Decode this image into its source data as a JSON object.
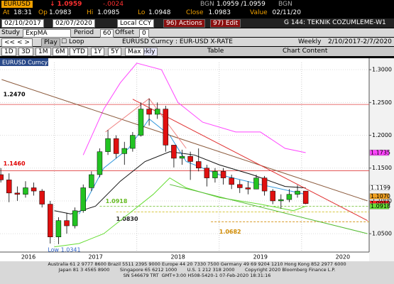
{
  "header": {
    "ticker": "EURUSD",
    "last": "↓ 1.0959",
    "change": "-.0024",
    "src1": "BGN",
    "bid_ask": "1.0959 /1.0959",
    "src2": "BGN",
    "stats": [
      {
        "label": "At",
        "value": "18:31"
      },
      {
        "label": "Op",
        "value": "1.0983"
      },
      {
        "label": "Hi",
        "value": "1.0985"
      },
      {
        "label": "Lo",
        "value": "1.0948"
      },
      {
        "label": "Close",
        "value": "1.0983"
      },
      {
        "label": "Value",
        "value": "02/11/20"
      }
    ]
  },
  "toolbar": {
    "start_date": "02/10/2017",
    "end_date": "02/07/2020",
    "currency": "Local CCY",
    "actions": "96) Actions",
    "edit": "97) Edit",
    "template": "G 144: TEKNIK COZUMLEME-W1",
    "study_label": "Study",
    "study": "ExpMA",
    "period_label": "Period",
    "period": "60",
    "offset_label": "Offset",
    "offset": "0",
    "play": "Play",
    "loop": "Loop",
    "security": "EURUSD Curncy : EUR-USD X-RATE",
    "frequency": "Weekly",
    "range": "2/10/2017-2/7/2020",
    "periods": [
      "1D",
      "3D",
      "1M",
      "6M",
      "YTD",
      "1Y",
      "5Y",
      "Max"
    ],
    "period_select": "Weekly",
    "table": "Table",
    "chart_content": "Chart Content"
  },
  "chart_data": {
    "type": "candlestick",
    "security_label": "EURUSD Curncy",
    "low_label": "Low 1.0341",
    "xlim": [
      2016.34,
      2020.82
    ],
    "xticks": [
      2016,
      2017,
      2018,
      2019,
      2020
    ],
    "ylim": [
      1.022,
      1.311
    ],
    "yticks": [
      {
        "value": 1.3,
        "label": "1.3000"
      },
      {
        "value": 1.25,
        "label": "1.2500"
      },
      {
        "value": 1.2,
        "label": "1.2000"
      },
      {
        "value": 1.15,
        "label": "1.1500"
      },
      {
        "value": 1.1,
        "label": "1.1000"
      },
      {
        "value": 1.05,
        "label": "1.0500"
      }
    ],
    "up_color": "#22c322",
    "down_color": "#e01010",
    "candles": {
      "x": [
        2016.35,
        2016.45,
        2016.55,
        2016.65,
        2016.75,
        2016.85,
        2016.95,
        2017.05,
        2017.15,
        2017.25,
        2017.35,
        2017.45,
        2017.55,
        2017.65,
        2017.75,
        2017.85,
        2017.95,
        2018.05,
        2018.15,
        2018.25,
        2018.35,
        2018.45,
        2018.55,
        2018.65,
        2018.75,
        2018.85,
        2018.95,
        2019.05,
        2019.15,
        2019.25,
        2019.35,
        2019.45,
        2019.55,
        2019.65,
        2019.75,
        2019.85,
        2019.95,
        2020.05
      ],
      "open": [
        1.14,
        1.132,
        1.112,
        1.11,
        1.12,
        1.115,
        1.095,
        1.045,
        1.07,
        1.062,
        1.085,
        1.12,
        1.14,
        1.175,
        1.195,
        1.172,
        1.18,
        1.2,
        1.24,
        1.232,
        1.24,
        1.185,
        1.165,
        1.168,
        1.16,
        1.15,
        1.135,
        1.145,
        1.135,
        1.125,
        1.12,
        1.118,
        1.135,
        1.115,
        1.1,
        1.102,
        1.11,
        1.115
      ],
      "high": [
        1.15,
        1.142,
        1.122,
        1.13,
        1.128,
        1.118,
        1.1,
        1.075,
        1.082,
        1.09,
        1.125,
        1.145,
        1.18,
        1.208,
        1.2,
        1.19,
        1.205,
        1.25,
        1.256,
        1.25,
        1.245,
        1.185,
        1.178,
        1.175,
        1.18,
        1.155,
        1.15,
        1.15,
        1.14,
        1.132,
        1.13,
        1.14,
        1.138,
        1.118,
        1.11,
        1.118,
        1.124,
        1.115
      ],
      "low": [
        1.128,
        1.098,
        1.1,
        1.105,
        1.108,
        1.09,
        1.035,
        1.0341,
        1.05,
        1.058,
        1.082,
        1.115,
        1.136,
        1.17,
        1.165,
        1.155,
        1.175,
        1.198,
        1.215,
        1.225,
        1.175,
        1.151,
        1.155,
        1.132,
        1.145,
        1.122,
        1.128,
        1.125,
        1.118,
        1.112,
        1.11,
        1.118,
        1.108,
        1.095,
        1.088,
        1.098,
        1.105,
        1.095
      ],
      "close": [
        1.132,
        1.112,
        1.11,
        1.12,
        1.115,
        1.095,
        1.045,
        1.07,
        1.062,
        1.085,
        1.12,
        1.14,
        1.175,
        1.195,
        1.172,
        1.18,
        1.2,
        1.24,
        1.232,
        1.24,
        1.185,
        1.165,
        1.168,
        1.16,
        1.15,
        1.135,
        1.145,
        1.135,
        1.125,
        1.12,
        1.118,
        1.135,
        1.115,
        1.1,
        1.102,
        1.11,
        1.115,
        1.0959
      ]
    },
    "overlays": [
      {
        "color": "#ff44ff",
        "x": [
          2017.35,
          2017.6,
          2017.8,
          2018.0,
          2018.3,
          2018.5,
          2018.8,
          2019.2,
          2019.5,
          2019.8,
          2020.05
        ],
        "values": [
          1.17,
          1.24,
          1.28,
          1.31,
          1.3,
          1.25,
          1.22,
          1.205,
          1.205,
          1.18,
          1.1735
        ]
      },
      {
        "color": "#66dd33",
        "x": [
          2017.0,
          2017.3,
          2017.6,
          2017.9,
          2018.2,
          2018.4,
          2018.6,
          2019.0,
          2019.5,
          2019.9,
          2020.05
        ],
        "values": [
          1.03,
          1.035,
          1.05,
          1.08,
          1.11,
          1.135,
          1.12,
          1.105,
          1.095,
          1.085,
          1.0918
        ]
      },
      {
        "color": "#111111",
        "x": [
          2017.0,
          2017.2,
          2017.5,
          2017.8,
          2018.1,
          2018.4,
          2018.7,
          2019.0,
          2019.4,
          2019.8,
          2020.05
        ],
        "values": [
          1.085,
          1.08,
          1.092,
          1.13,
          1.16,
          1.175,
          1.17,
          1.155,
          1.14,
          1.122,
          1.1199
        ]
      },
      {
        "color": "#3399dd",
        "x": [
          2017.3,
          2017.6,
          2017.9,
          2018.15,
          2018.4,
          2018.6,
          2019.0,
          2019.5,
          2020.05
        ],
        "values": [
          1.08,
          1.15,
          1.18,
          1.225,
          1.2,
          1.16,
          1.14,
          1.125,
          1.11
        ]
      },
      {
        "color": "#8b5a3c",
        "x": [
          2016.36,
          2020.8
        ],
        "values": [
          1.285,
          1.1
        ]
      },
      {
        "color": "#e03030",
        "x": [
          2017.95,
          2020.8
        ],
        "values": [
          1.255,
          1.07
        ]
      },
      {
        "color": "#f08080",
        "x": [
          2017.62,
          2018.15,
          2018.6
        ],
        "values": [
          1.205,
          1.256,
          1.18
        ]
      },
      {
        "color": "#55bb33",
        "x": [
          2018.4,
          2020.8
        ],
        "values": [
          1.125,
          1.05
        ]
      }
    ],
    "levels": [
      {
        "value": 1.247,
        "label": "1.2470",
        "color": "#000000",
        "line_color": "#e04040"
      },
      {
        "value": 1.146,
        "label": "1.1460",
        "color": "#e00000",
        "line_color": "#e04040"
      },
      {
        "value": 1.0918,
        "label": "1.0918",
        "color": "#66bb22",
        "line_color": "#66bb22"
      },
      {
        "value": 1.083,
        "label": "1.0830",
        "color": "#222222",
        "line_color": "#c8b400"
      },
      {
        "value": 1.0682,
        "label": "1.0682",
        "color": "#d08a00",
        "line_color": "#d08a00"
      }
    ],
    "markers": [
      {
        "value": 1.1735,
        "label": "1.1735",
        "color": "#ff44ff"
      },
      {
        "value": 1.1199,
        "label": "1.1199",
        "color": "#ffffff"
      },
      {
        "value": 1.107,
        "label": "1.1070",
        "color": "#f0a020"
      },
      {
        "value": 1.0959,
        "label": "1.0959",
        "color": "#ff2020"
      },
      {
        "value": 1.0918,
        "label": "1.0918",
        "color": "#66dd33"
      }
    ]
  },
  "footer": {
    "lines": [
      "Australia 61 2 9777 8600 Brazil 5511 2395 9000 Europe 44 20 7330 7500 Germany 49 69 9204 1210 Hong Kong 852 2977 6000",
      "Japan 81 3 4565 8900       Singapore 65 6212 1000       U.S. 1 212 318 2000       Copyright 2020 Bloomberg Finance L.P.",
      "SN 546679 TRT  GMT+3:00 H508-5420-1 07-Feb-2020 18:31:16"
    ]
  }
}
